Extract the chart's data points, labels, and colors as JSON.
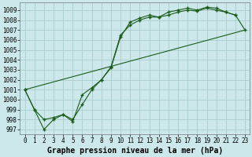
{
  "title": "Graphe pression niveau de la mer (hPa)",
  "background_color": "#cce8ea",
  "grid_color": "#aacccc",
  "line_color": "#1a5c1a",
  "xlim": [
    -0.5,
    23.5
  ],
  "ylim": [
    996.5,
    1009.8
  ],
  "xticks": [
    0,
    1,
    2,
    3,
    4,
    5,
    6,
    7,
    8,
    9,
    10,
    11,
    12,
    13,
    14,
    15,
    16,
    17,
    18,
    19,
    20,
    21,
    22,
    23
  ],
  "yticks": [
    997,
    998,
    999,
    1000,
    1001,
    1002,
    1003,
    1004,
    1005,
    1006,
    1007,
    1008,
    1009
  ],
  "series1_x": [
    0,
    1,
    2,
    3,
    4,
    5,
    6,
    7,
    8,
    9,
    10,
    11,
    12,
    13,
    14,
    15,
    16,
    17,
    18,
    19,
    20,
    21,
    22
  ],
  "series1_y": [
    1001,
    999,
    997,
    998,
    998.5,
    997.8,
    1000.5,
    1001.2,
    1002.0,
    1003.3,
    1006.5,
    1007.5,
    1008.0,
    1008.3,
    1008.3,
    1008.5,
    1008.8,
    1009.0,
    1008.9,
    1009.2,
    1009.0,
    1008.8,
    1008.5
  ],
  "series2_x": [
    0,
    1,
    2,
    3,
    4,
    5,
    6,
    7,
    8,
    9,
    10,
    11,
    12,
    13,
    14,
    15,
    16,
    17,
    18,
    19,
    20,
    21,
    22,
    23
  ],
  "series2_y": [
    1001,
    999,
    998,
    998.2,
    998.5,
    998.0,
    999.5,
    1001.0,
    1002.0,
    1003.2,
    1006.3,
    1007.8,
    1008.2,
    1008.5,
    1008.3,
    1008.8,
    1009.0,
    1009.2,
    1009.0,
    1009.3,
    1009.2,
    1008.8,
    1008.5,
    1007.0
  ],
  "series3_x": [
    0,
    23
  ],
  "series3_y": [
    1001,
    1007.0
  ],
  "title_fontsize": 7,
  "tick_fontsize": 5.5
}
